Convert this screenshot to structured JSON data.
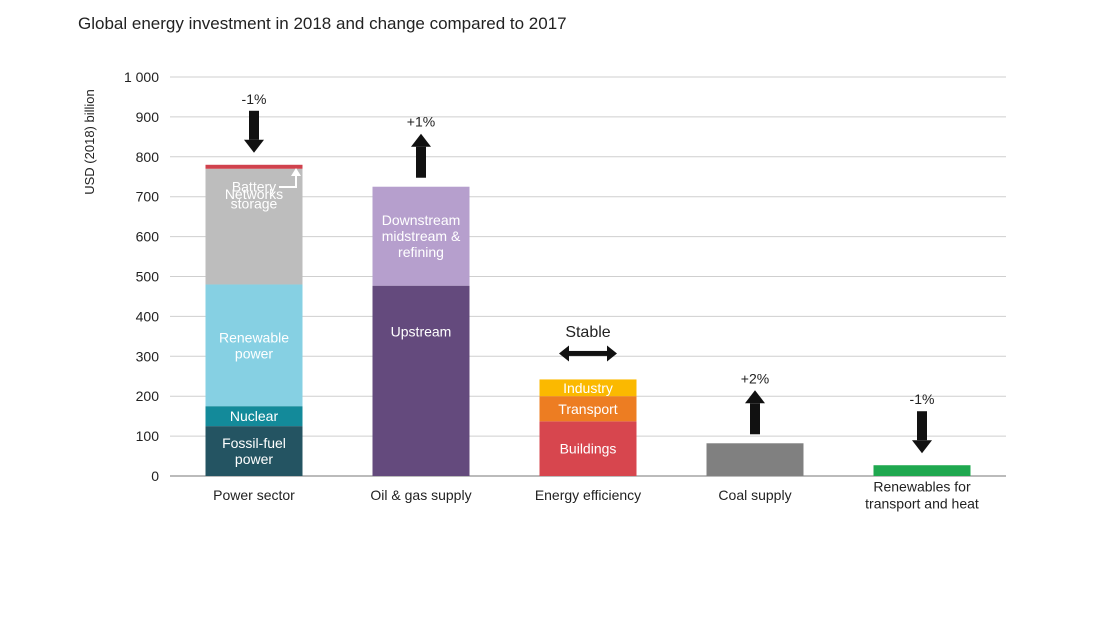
{
  "chart_data": {
    "type": "bar",
    "stacked": true,
    "title": "Global energy investment in 2018 and change compared to 2017",
    "ylabel": "USD (2018) billion",
    "xlabel": "",
    "ylim": [
      0,
      1000
    ],
    "yticks": [
      0,
      100,
      200,
      300,
      400,
      500,
      600,
      700,
      800,
      900,
      1000
    ],
    "ytick_labels": [
      "0",
      "100",
      "200",
      "300",
      "400",
      "500",
      "600",
      "700",
      "800",
      "900",
      "1 000"
    ],
    "grid": true,
    "categories": [
      {
        "label": "Power sector",
        "change": "-1%",
        "direction": "down",
        "segments": [
          {
            "name": "Fossil-fuel power",
            "label": "Fossil-fuel\npower",
            "value": 125,
            "color": "#245462",
            "text_color": "#ffffff"
          },
          {
            "name": "Nuclear",
            "label": "Nuclear",
            "value": 50,
            "color": "#138a9a",
            "text_color": "#ffffff"
          },
          {
            "name": "Renewable power",
            "label": "Renewable\npower",
            "value": 305,
            "color": "#86d0e3",
            "text_color": "#ffffff"
          },
          {
            "name": "Networks",
            "label": "Networks",
            "value": 290,
            "color": "#bdbdbd",
            "text_color": "#ffffff"
          },
          {
            "name": "Battery storage",
            "label": "",
            "value": 10,
            "color": "#d0424d",
            "text_color": "#ffffff"
          }
        ],
        "annotation": "Battery\nstorage"
      },
      {
        "label": "Oil & gas supply",
        "change": "+1%",
        "direction": "up",
        "segments": [
          {
            "name": "Upstream",
            "label": "Upstream",
            "value": 477,
            "color": "#644a7d",
            "text_color": "#ffffff"
          },
          {
            "name": "Downstream midstream & refining",
            "label": "Downstream\nmidstream &\nrefining",
            "value": 248,
            "color": "#b69fcd",
            "text_color": "#ffffff"
          }
        ]
      },
      {
        "label": "Energy efficiency",
        "change": "Stable",
        "direction": "stable",
        "segments": [
          {
            "name": "Buildings",
            "label": "Buildings",
            "value": 137,
            "color": "#d7464e",
            "text_color": "#ffffff"
          },
          {
            "name": "Transport",
            "label": "Transport",
            "value": 63,
            "color": "#ed7d22",
            "text_color": "#ffffff"
          },
          {
            "name": "Industry",
            "label": "Industry",
            "value": 42,
            "color": "#fbb900",
            "text_color": "#ffffff"
          }
        ]
      },
      {
        "label": "Coal supply",
        "change": "+2%",
        "direction": "up",
        "segments": [
          {
            "name": "Coal supply",
            "label": "",
            "value": 82,
            "color": "#808080",
            "text_color": "#ffffff"
          }
        ]
      },
      {
        "label": "Renewables for\ntransport and heat",
        "change": "-1%",
        "direction": "down",
        "segments": [
          {
            "name": "Renewables for transport and heat",
            "label": "",
            "value": 27,
            "color": "#1fa84f",
            "text_color": "#ffffff"
          }
        ]
      }
    ]
  }
}
